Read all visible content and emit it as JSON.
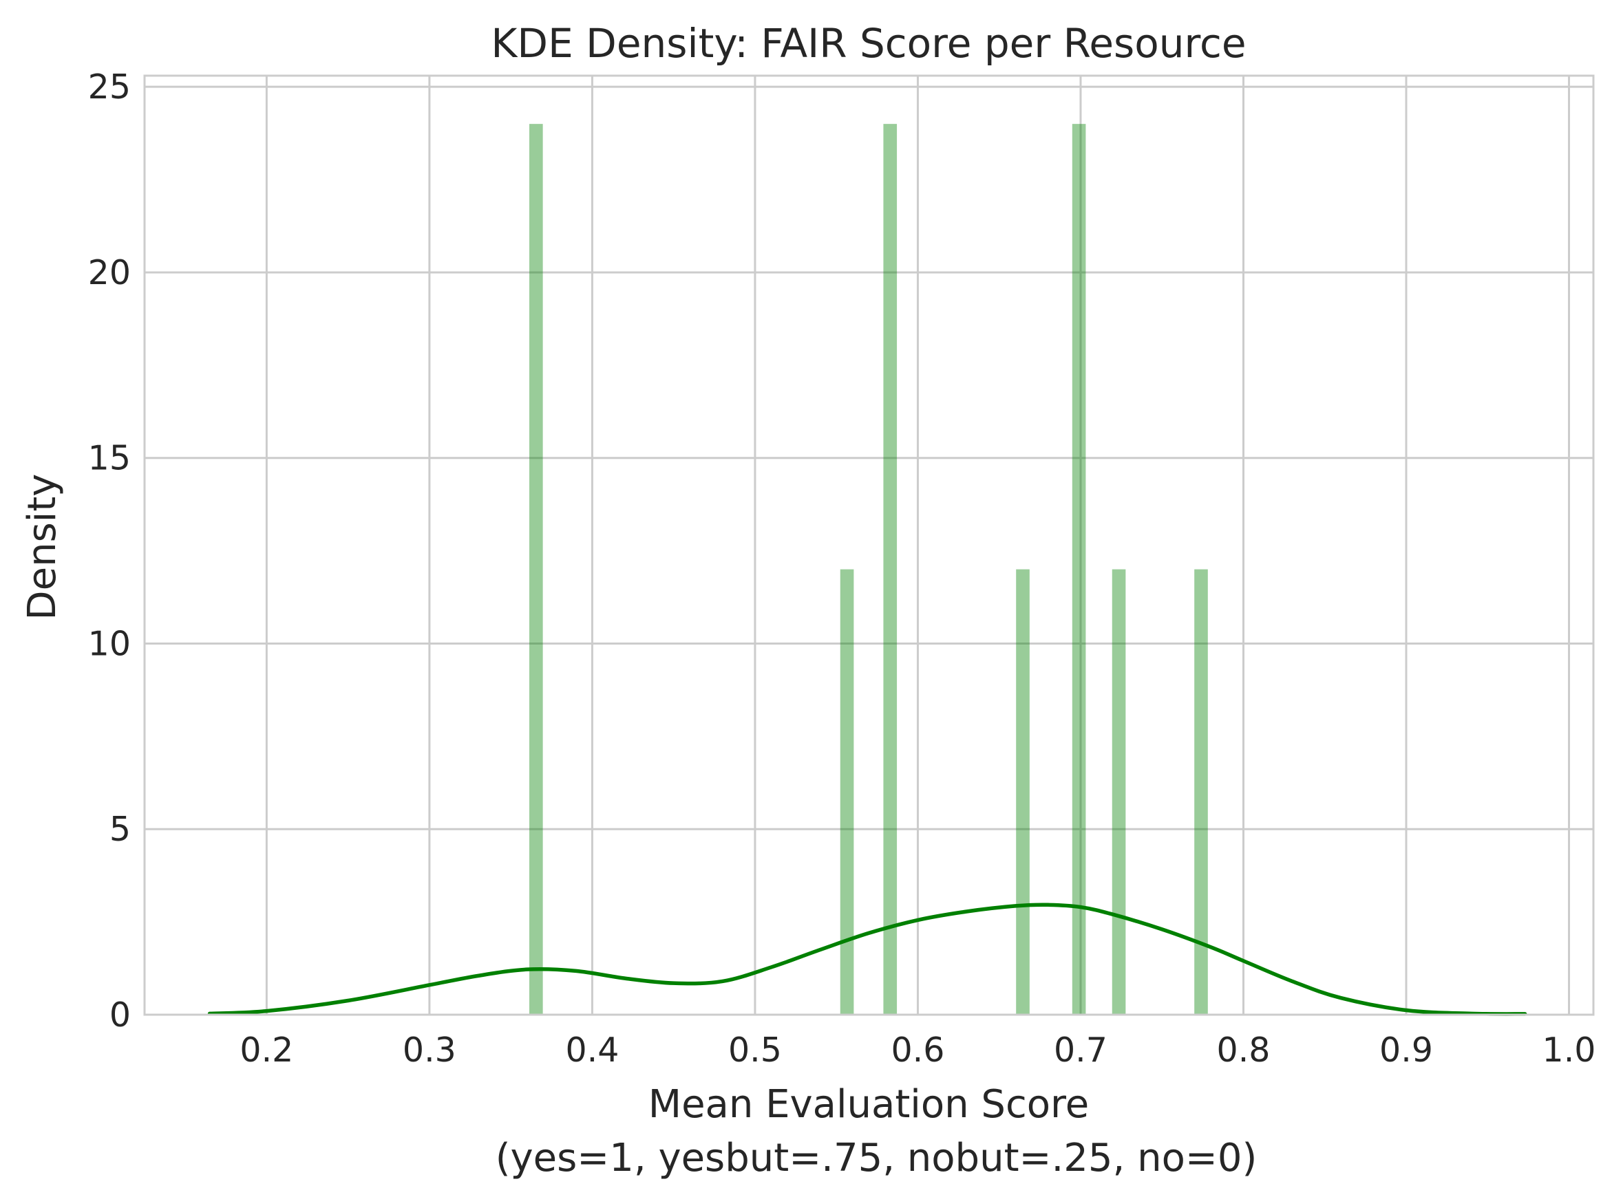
{
  "chart_data": {
    "type": "bar",
    "title": "KDE Density: FAIR Score per Resource",
    "xlabel_line1": "Mean Evaluation Score",
    "xlabel_line2": "(yes=1, yesbut=.75, nobut=.25, no=0)",
    "ylabel": "Density",
    "xlim": [
      0.125,
      1.015
    ],
    "ylim": [
      0,
      25.3
    ],
    "xticks": [
      0.2,
      0.3,
      0.4,
      0.5,
      0.6,
      0.7,
      0.8,
      0.9,
      1.0
    ],
    "xtick_labels": [
      "0.2",
      "0.3",
      "0.4",
      "0.5",
      "0.6",
      "0.7",
      "0.8",
      "0.9",
      "1.0"
    ],
    "yticks": [
      0,
      5,
      10,
      15,
      20,
      25
    ],
    "ytick_labels": [
      "0",
      "5",
      "10",
      "15",
      "20",
      "25"
    ],
    "grid": true,
    "histogram": {
      "bin_width": 0.0083,
      "bars": [
        {
          "x": 0.3655,
          "height": 24
        },
        {
          "x": 0.5565,
          "height": 12
        },
        {
          "x": 0.583,
          "height": 24
        },
        {
          "x": 0.6645,
          "height": 12
        },
        {
          "x": 0.699,
          "height": 24
        },
        {
          "x": 0.7235,
          "height": 12
        },
        {
          "x": 0.774,
          "height": 12
        }
      ]
    },
    "kde": {
      "x": [
        0.165,
        0.2,
        0.25,
        0.3,
        0.33,
        0.36,
        0.39,
        0.42,
        0.45,
        0.48,
        0.51,
        0.54,
        0.57,
        0.6,
        0.63,
        0.66,
        0.68,
        0.7,
        0.72,
        0.75,
        0.78,
        0.8,
        0.83,
        0.86,
        0.9,
        0.94,
        0.973
      ],
      "y": [
        0.03,
        0.1,
        0.38,
        0.8,
        1.05,
        1.22,
        1.18,
        0.98,
        0.85,
        0.9,
        1.28,
        1.75,
        2.2,
        2.55,
        2.78,
        2.93,
        2.96,
        2.9,
        2.7,
        2.3,
        1.82,
        1.45,
        0.9,
        0.45,
        0.12,
        0.03,
        0.02
      ]
    },
    "colors": {
      "bars": "#008000",
      "kde_line": "#008000",
      "grid": "#cccccc",
      "text": "#262626"
    }
  }
}
